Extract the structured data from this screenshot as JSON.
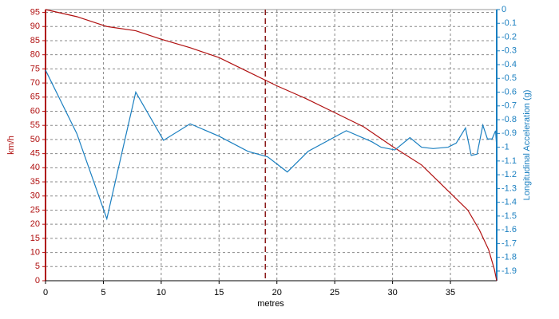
{
  "chart_data": {
    "type": "line",
    "x_label": "metres",
    "y_label": "km/h",
    "y2_label": "Longitudinal Acceleration (g)",
    "xlim": [
      0,
      39
    ],
    "xticks": [
      0,
      5,
      10,
      15,
      20,
      25,
      30,
      35
    ],
    "ylim": [
      0,
      96
    ],
    "yticks": [
      0,
      5,
      10,
      15,
      20,
      25,
      30,
      35,
      40,
      45,
      50,
      55,
      60,
      65,
      70,
      75,
      80,
      85,
      90,
      95
    ],
    "y2lim": [
      -1.97,
      0
    ],
    "y2ticks": [
      0,
      -0.1,
      -0.2,
      -0.3,
      -0.4,
      -0.5,
      -0.6,
      -0.7,
      -0.8,
      -0.9,
      -1,
      -1.1,
      -1.2,
      -1.3,
      -1.4,
      -1.5,
      -1.6,
      -1.7,
      -1.8,
      -1.9
    ],
    "grid": true,
    "marker_x": 19,
    "marker_color": "#8b1a1a",
    "series": [
      {
        "color": "#b01010",
        "axis": "y",
        "x": [
          0,
          2.7,
          5.3,
          7.8,
          10,
          12.5,
          15,
          17.5,
          20,
          22.5,
          25,
          27.5,
          30,
          32.5,
          35,
          36.5,
          37.5,
          38.3,
          38.8,
          39
        ],
        "values": [
          96,
          93.5,
          90,
          88.5,
          85.5,
          82.5,
          79,
          74,
          69,
          64.5,
          59.5,
          54.5,
          47.5,
          41,
          31,
          25,
          18,
          11,
          4,
          0
        ]
      },
      {
        "color": "#1a7fc0",
        "axis": "y2",
        "x": [
          0,
          2.7,
          5.3,
          7.8,
          10.2,
          12.5,
          15,
          17.5,
          19.2,
          20.9,
          22.7,
          26,
          28.2,
          29,
          30.2,
          31.5,
          32.5,
          33.5,
          34.8,
          35.5,
          36.3,
          36.8,
          37.3,
          37.8,
          38.2,
          38.6,
          38.9,
          39
        ],
        "values": [
          -0.44,
          -0.9,
          -1.52,
          -0.6,
          -0.95,
          -0.83,
          -0.92,
          -1.03,
          -1.07,
          -1.18,
          -1.03,
          -0.88,
          -0.96,
          -1.0,
          -1.02,
          -0.93,
          -1.0,
          -1.01,
          -1.0,
          -0.97,
          -0.86,
          -1.06,
          -1.05,
          -0.84,
          -0.94,
          -0.94,
          -0.88,
          -1.0
        ]
      }
    ]
  }
}
